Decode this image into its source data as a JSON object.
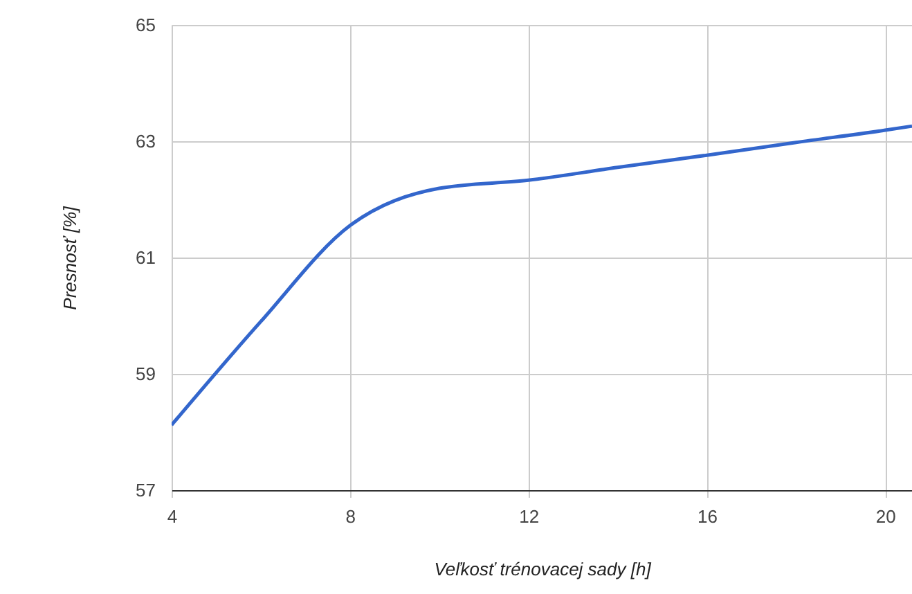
{
  "chart_data": {
    "type": "line",
    "xlabel": "Veľkosť trénovacej sady [h]",
    "ylabel": "Presnosť [%]",
    "x": [
      4,
      6,
      8,
      10,
      12,
      14,
      16,
      18,
      20,
      20.6
    ],
    "series": [
      {
        "color": "#3366cc",
        "values": [
          58.12,
          59.9,
          61.55,
          62.19,
          62.33,
          62.55,
          62.76,
          62.98,
          63.19,
          63.26
        ]
      }
    ],
    "xlim": [
      4,
      20.6
    ],
    "xticks": [
      4,
      8,
      12,
      16,
      20
    ],
    "ylim": [
      57,
      65
    ],
    "yticks": [
      57,
      59,
      61,
      63,
      65
    ],
    "grid": true,
    "marker": "none",
    "line_style": "solid"
  }
}
